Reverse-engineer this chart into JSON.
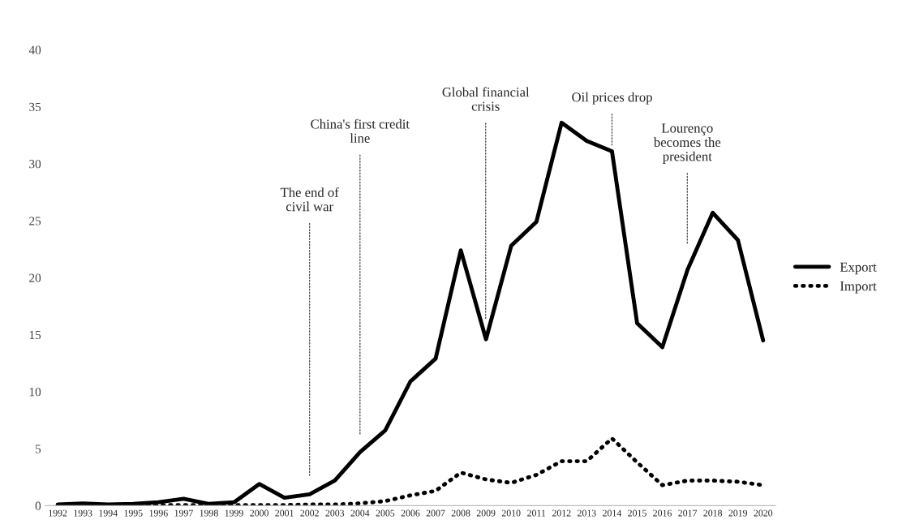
{
  "chart_data": {
    "type": "line",
    "categories": [
      "1992",
      "1993",
      "1994",
      "1995",
      "1996",
      "1997",
      "1998",
      "1999",
      "2000",
      "2001",
      "2002",
      "2003",
      "2004",
      "2005",
      "2006",
      "2007",
      "2008",
      "2009",
      "2010",
      "2011",
      "2012",
      "2013",
      "2014",
      "2015",
      "2016",
      "2017",
      "2018",
      "2019",
      "2020"
    ],
    "series": [
      {
        "name": "Export",
        "color": "#000000",
        "line_style": "solid",
        "values": [
          0.1,
          0.2,
          0.1,
          0.15,
          0.3,
          0.6,
          0.15,
          0.3,
          1.9,
          0.7,
          1.0,
          2.2,
          4.7,
          6.6,
          10.9,
          12.9,
          22.4,
          14.6,
          22.8,
          24.9,
          33.6,
          32.0,
          31.1,
          16.0,
          13.9,
          20.7,
          25.7,
          23.3,
          14.5
        ]
      },
      {
        "name": "Import",
        "color": "#000000",
        "line_style": "dotted",
        "values": [
          0.05,
          0.05,
          0.05,
          0.05,
          0.05,
          0.05,
          0.05,
          0.05,
          0.05,
          0.05,
          0.1,
          0.1,
          0.2,
          0.4,
          0.9,
          1.3,
          2.9,
          2.3,
          2.0,
          2.7,
          3.9,
          3.9,
          5.9,
          3.8,
          1.8,
          2.2,
          2.2,
          2.1,
          1.8
        ]
      }
    ],
    "ylim": [
      0,
      40
    ],
    "yticks": [
      0,
      5,
      10,
      15,
      20,
      25,
      30,
      35,
      40
    ],
    "grid": false,
    "legend": "right",
    "marker": "none",
    "annotations": [
      "The end of\ncivil war",
      "China's first credit\nline",
      "Global financial\ncrisis",
      {
        "text": "Oil prices drop",
        "x": "2014",
        "y": 31.6
      },
      "Lourenço\nbecomes the\npresident"
    ]
  }
}
